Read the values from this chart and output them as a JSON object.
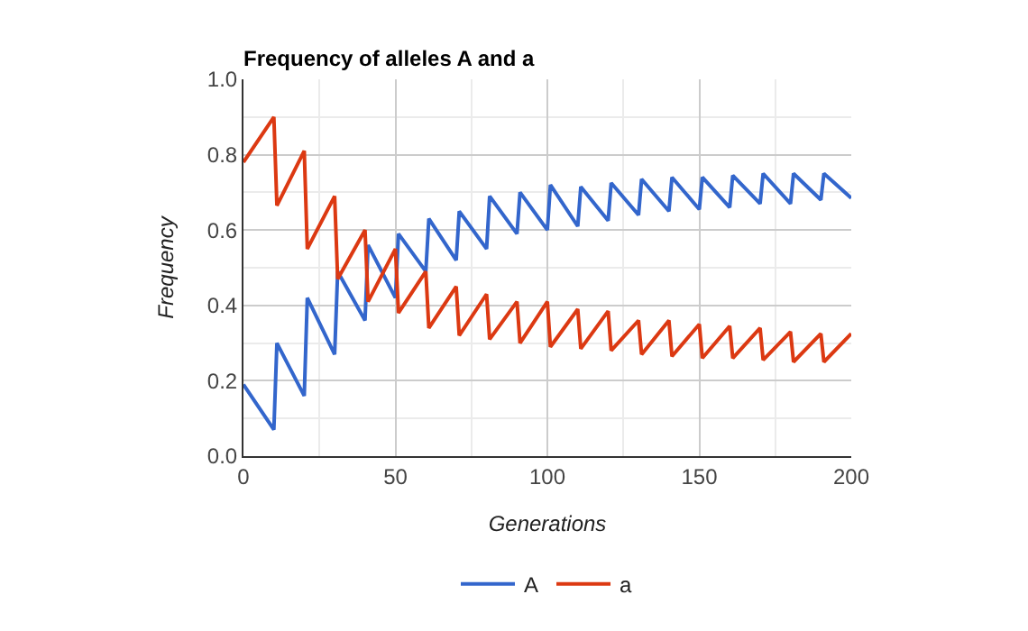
{
  "chart_data": {
    "type": "line",
    "title": "Frequency of alleles A and a",
    "xlabel": "Generations",
    "ylabel": "Frequency",
    "x": [
      0,
      10,
      11,
      20,
      21,
      30,
      31,
      40,
      41,
      50,
      51,
      60,
      61,
      70,
      71,
      80,
      81,
      90,
      91,
      100,
      101,
      110,
      111,
      120,
      121,
      130,
      131,
      140,
      141,
      150,
      151,
      160,
      161,
      170,
      171,
      180,
      181,
      190,
      191,
      200
    ],
    "series": [
      {
        "name": "A",
        "color": "#3366cc",
        "values": [
          0.19,
          0.07,
          0.3,
          0.16,
          0.42,
          0.27,
          0.49,
          0.36,
          0.56,
          0.42,
          0.59,
          0.49,
          0.63,
          0.52,
          0.65,
          0.55,
          0.69,
          0.59,
          0.7,
          0.6,
          0.72,
          0.61,
          0.715,
          0.625,
          0.725,
          0.64,
          0.735,
          0.65,
          0.74,
          0.655,
          0.74,
          0.66,
          0.745,
          0.67,
          0.75,
          0.67,
          0.75,
          0.68,
          0.75,
          0.685
        ]
      },
      {
        "name": "a",
        "color": "#dc3912",
        "values": [
          0.78,
          0.9,
          0.665,
          0.81,
          0.55,
          0.69,
          0.47,
          0.6,
          0.41,
          0.55,
          0.38,
          0.49,
          0.34,
          0.45,
          0.32,
          0.43,
          0.31,
          0.41,
          0.3,
          0.41,
          0.29,
          0.39,
          0.285,
          0.385,
          0.28,
          0.36,
          0.27,
          0.36,
          0.265,
          0.35,
          0.26,
          0.345,
          0.26,
          0.34,
          0.255,
          0.33,
          0.25,
          0.325,
          0.25,
          0.325
        ]
      }
    ],
    "xlim": [
      0,
      200
    ],
    "xticks": [
      0,
      50,
      100,
      150,
      200
    ],
    "ylim": [
      0,
      1
    ],
    "yticks": [
      {
        "value": 0,
        "label": "0.0"
      },
      {
        "value": 0.2,
        "label": "0.2"
      },
      {
        "value": 0.4,
        "label": "0.4"
      },
      {
        "value": 0.6,
        "label": "0.6"
      },
      {
        "value": 0.8,
        "label": "0.8"
      },
      {
        "value": 1,
        "label": "1.0"
      }
    ],
    "grid": true,
    "legend": "bottom",
    "marker": "none",
    "line_style": "solid"
  }
}
